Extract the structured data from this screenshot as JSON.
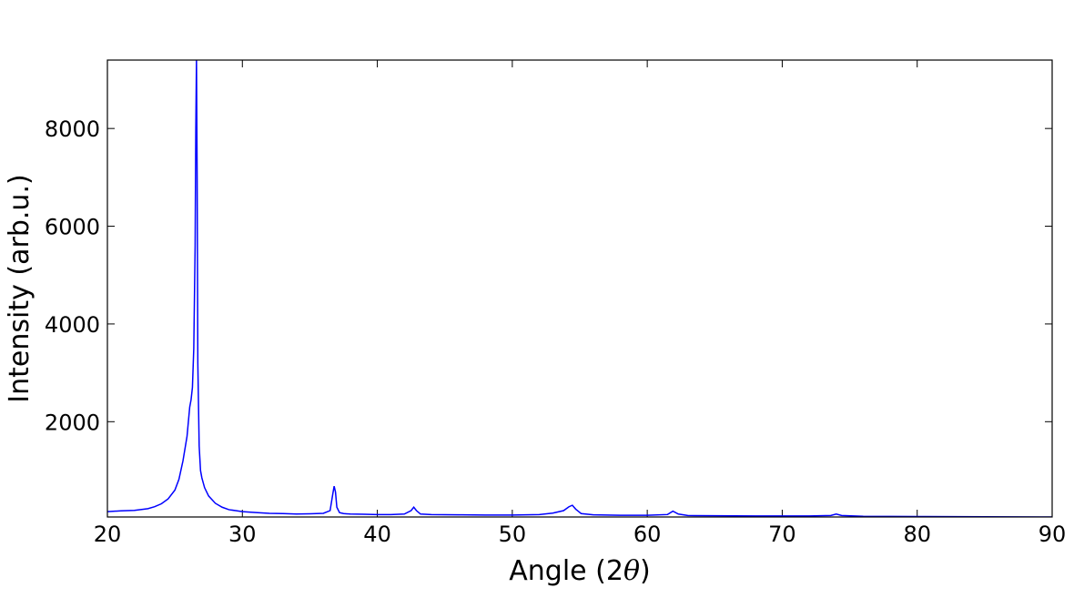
{
  "chart_data": {
    "type": "line",
    "xlabel": "Angle (2",
    "xlabel_symbol": "θ",
    "xlabel_close": ")",
    "ylabel": "Intensity (arb.u.)",
    "xlim": [
      20,
      90
    ],
    "ylim": [
      50,
      9400
    ],
    "x_ticks": [
      20,
      30,
      40,
      50,
      60,
      70,
      80,
      90
    ],
    "y_ticks": [
      2000,
      4000,
      6000,
      8000
    ],
    "grid": false,
    "legend": "none",
    "line_color": "#0000ff",
    "series": [
      {
        "x": [
          20,
          21,
          22,
          23,
          23.5,
          24,
          24.5,
          25,
          25.3,
          25.6,
          25.9,
          26.1,
          26.2,
          26.3,
          26.4,
          26.5,
          26.55,
          26.6,
          26.65,
          26.7,
          26.8,
          26.9,
          27.0,
          27.2,
          27.5,
          28,
          28.5,
          29,
          29.5,
          30,
          31,
          32,
          33,
          34,
          35,
          36,
          36.5,
          36.7,
          36.8,
          36.9,
          37.0,
          37.2,
          37.5,
          38,
          39,
          40,
          41,
          42,
          42.5,
          42.7,
          42.9,
          43.2,
          44,
          46,
          48,
          50,
          52,
          53,
          53.8,
          54.2,
          54.45,
          54.7,
          55.1,
          56,
          58,
          60,
          61.5,
          61.9,
          62.3,
          63,
          65,
          68,
          70,
          72,
          73.6,
          74.0,
          74.4,
          76,
          80,
          85,
          90
        ],
        "y": [
          160,
          175,
          185,
          220,
          260,
          320,
          420,
          600,
          820,
          1200,
          1700,
          2300,
          2450,
          2700,
          3500,
          5600,
          8000,
          9400,
          7000,
          3200,
          1500,
          1000,
          850,
          650,
          480,
          330,
          250,
          200,
          180,
          160,
          140,
          125,
          120,
          110,
          115,
          125,
          180,
          520,
          680,
          560,
          250,
          140,
          120,
          110,
          105,
          100,
          100,
          110,
          180,
          250,
          180,
          110,
          100,
          95,
          90,
          90,
          100,
          130,
          180,
          260,
          290,
          210,
          120,
          95,
          85,
          85,
          100,
          170,
          110,
          80,
          75,
          70,
          70,
          70,
          80,
          110,
          80,
          65,
          60,
          55,
          50
        ]
      }
    ]
  }
}
